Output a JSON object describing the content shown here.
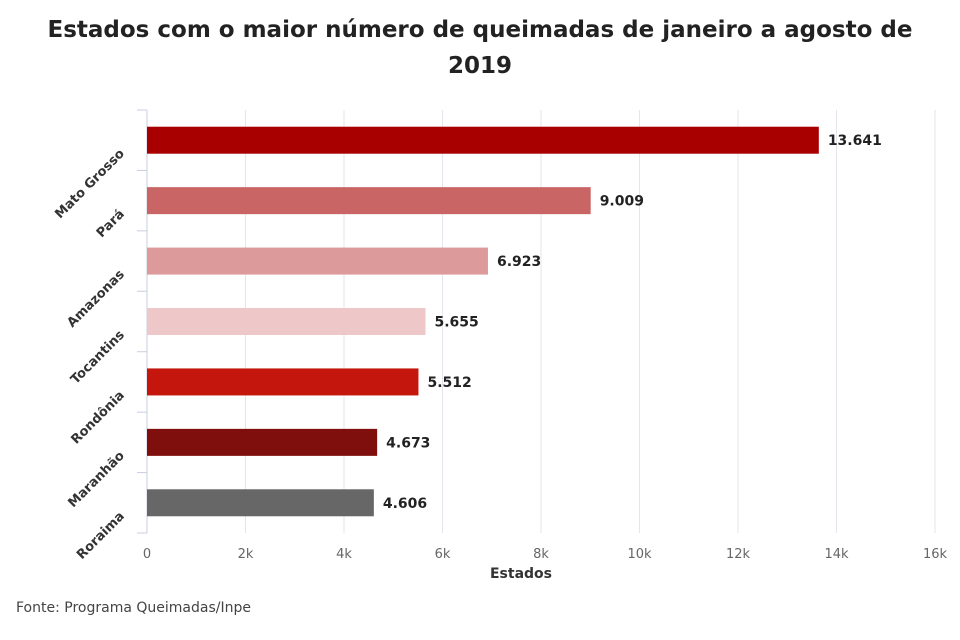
{
  "chart_data": {
    "type": "bar",
    "orientation": "horizontal",
    "title": "Estados com o maior número de queimadas de janeiro a agosto de 2019",
    "xlabel": "Estados",
    "ylabel": "",
    "categories": [
      "Mato Grosso",
      "Pará",
      "Amazonas",
      "Tocantins",
      "Rondônia",
      "Maranhão",
      "Roraima"
    ],
    "values": [
      13641,
      9009,
      6923,
      5655,
      5512,
      4673,
      4606
    ],
    "data_labels": [
      "13.641",
      "9.009",
      "6.923",
      "5.655",
      "5.512",
      "4.673",
      "4.606"
    ],
    "bar_colors": [
      "#a80000",
      "#c96565",
      "#dc9a9a",
      "#eec8c8",
      "#c4160c",
      "#7e0f0c",
      "#676767"
    ],
    "xlim": [
      0,
      16000
    ],
    "x_ticks": [
      0,
      2000,
      4000,
      6000,
      8000,
      10000,
      12000,
      14000,
      16000
    ],
    "x_tick_labels": [
      "0",
      "2k",
      "4k",
      "6k",
      "8k",
      "10k",
      "12k",
      "14k",
      "16k"
    ],
    "grid": true,
    "legend": "none"
  },
  "footer": {
    "source": "Fonte: Programa Queimadas/Inpe"
  }
}
